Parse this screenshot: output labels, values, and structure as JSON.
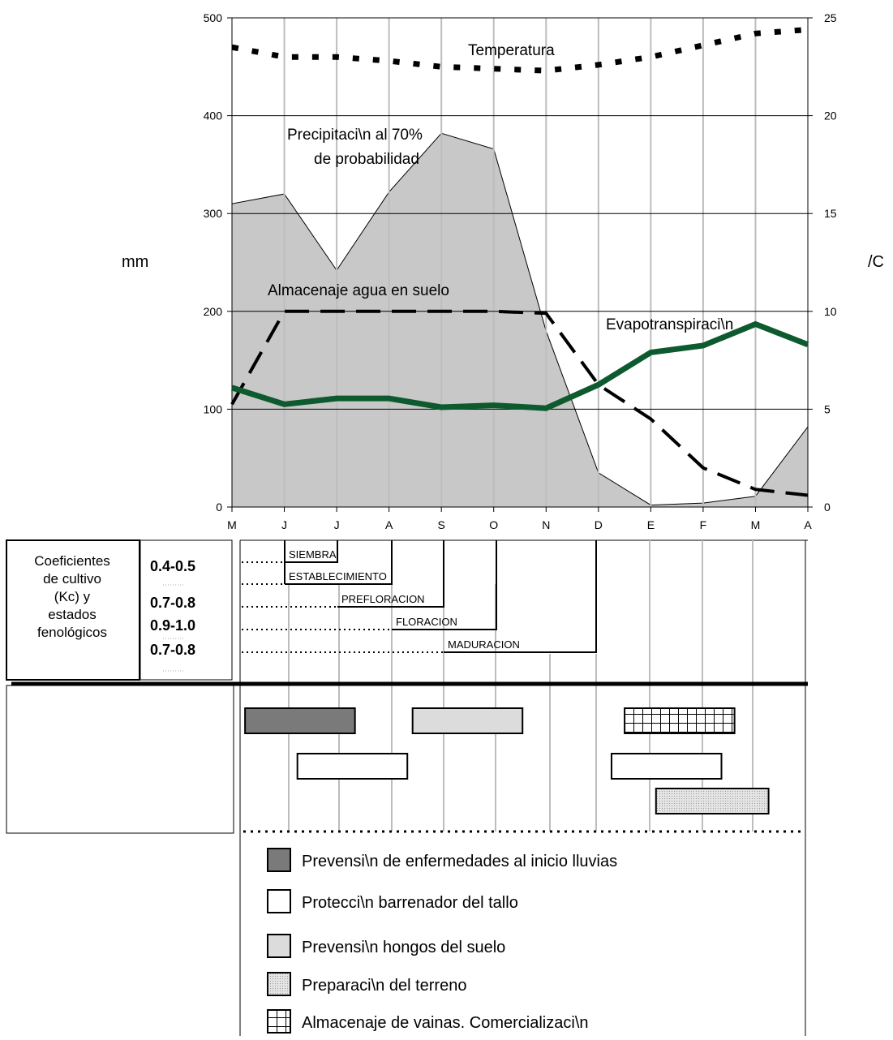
{
  "chart_data": {
    "type": "line",
    "months": [
      "M",
      "J",
      "J",
      "A",
      "S",
      "O",
      "N",
      "D",
      "E",
      "F",
      "M",
      "A"
    ],
    "y_left": {
      "label": "mm",
      "range": [
        0,
        500
      ],
      "ticks": [
        0,
        100,
        200,
        300,
        400,
        500
      ]
    },
    "y_right": {
      "label": "/C",
      "range": [
        0,
        25
      ],
      "ticks": [
        0,
        5,
        10,
        15,
        20,
        25
      ]
    },
    "grid": true,
    "series": [
      {
        "name": "Temperatura",
        "axis": "right",
        "style": "dotted",
        "color": "#000000",
        "values": [
          23.5,
          23.0,
          23.0,
          22.8,
          22.5,
          22.4,
          22.3,
          22.6,
          23.0,
          23.6,
          24.2,
          24.4
        ]
      },
      {
        "name": "Precipitaci\\n al 70% de probabilidad",
        "axis": "left",
        "style": "area",
        "color": "#c8c8c8",
        "values": [
          310,
          320,
          242,
          322,
          382,
          366,
          180,
          35,
          2,
          4,
          11,
          82
        ]
      },
      {
        "name": "Almacenaje agua en suelo",
        "axis": "left",
        "style": "dashed",
        "color": "#000000",
        "values": [
          105,
          200,
          200,
          200,
          200,
          200,
          198,
          125,
          90,
          40,
          18,
          12
        ]
      },
      {
        "name": "Evapotranspiraci\\n",
        "axis": "left",
        "style": "solid",
        "color": "#0d5a2e",
        "values": [
          122,
          105,
          111,
          111,
          102,
          104,
          101,
          125,
          158,
          165,
          187,
          166
        ]
      }
    ],
    "annotations": {
      "temperatura": "Temperatura",
      "precip_line1": "Precipitaci\\n al 70%",
      "precip_line2": "de probabilidad",
      "almacenaje": "Almacenaje agua en suelo",
      "evapo": "Evapotranspiraci\\n"
    }
  },
  "kc_panel": {
    "title_lines": [
      "Coeficientes",
      "de cultivo",
      "(Kc) y",
      "estados",
      "fenológicos"
    ],
    "values": [
      "0.4-0.5",
      "0.7-0.8",
      "0.9-1.0",
      "0.7-0.8"
    ]
  },
  "phenology": [
    {
      "label": "SIEMBRA",
      "start": 1,
      "end": 2
    },
    {
      "label": "ESTABLECIMIENTO",
      "start": 1,
      "end": 3
    },
    {
      "label": "PREFLORACION",
      "start": 2,
      "end": 4
    },
    {
      "label": "FLORACION",
      "start": 3,
      "end": 5
    },
    {
      "label": "MADURACION",
      "start": 4,
      "end": 7
    }
  ],
  "activities": [
    {
      "type": "enfermedades",
      "start": 0.25,
      "end": 2.35,
      "row": 0
    },
    {
      "type": "hongos",
      "start": 3.45,
      "end": 5.55,
      "row": 0
    },
    {
      "type": "almacenaje",
      "start": 7.5,
      "end": 9.6,
      "row": 0
    },
    {
      "type": "barrenador",
      "start": 1.25,
      "end": 3.35,
      "row": 1
    },
    {
      "type": "barrenador",
      "start": 7.25,
      "end": 9.35,
      "row": 1
    },
    {
      "type": "preparacion",
      "start": 8.1,
      "end": 10.25,
      "row": 2
    }
  ],
  "legend": [
    {
      "type": "enfermedades",
      "label": "Prevensi\\n de enfermedades al inicio lluvias"
    },
    {
      "type": "barrenador",
      "label": "Protecci\\n barrenador del tallo"
    },
    {
      "type": "hongos",
      "label": "Prevensi\\n hongos del suelo"
    },
    {
      "type": "preparacion",
      "label": "Preparaci\\n del terreno"
    },
    {
      "type": "almacenaje",
      "label": "Almacenaje de vainas.  Comercializaci\\n"
    }
  ],
  "colors": {
    "enfermedades": "#7a7a7a",
    "barrenador": "#ffffff",
    "hongos": "#dcdcdc",
    "preparacion": "#e6e6e6",
    "almacenaje": "#ffffff",
    "precip_fill": "#c8c8c8",
    "evapo_line": "#0d5a2e"
  }
}
